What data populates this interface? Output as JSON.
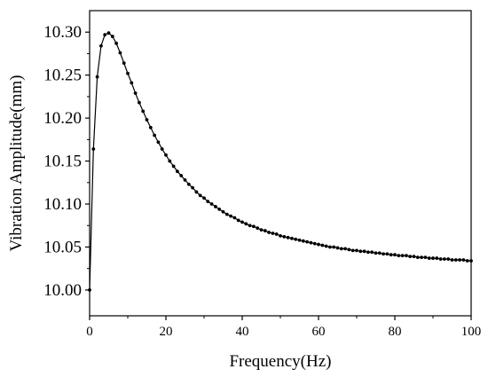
{
  "chart_data": {
    "type": "line",
    "title": "",
    "xlabel": "Frequency(Hz)",
    "ylabel": "Vibration Amplitude(mm)",
    "xlim": [
      0,
      100
    ],
    "ylim": [
      9.97,
      10.325
    ],
    "x_ticks": [
      0,
      20,
      40,
      60,
      80,
      100
    ],
    "x_tick_labels": [
      "0",
      "20",
      "40",
      "60",
      "80",
      "100"
    ],
    "y_ticks": [
      10.0,
      10.05,
      10.1,
      10.15,
      10.2,
      10.25,
      10.3
    ],
    "y_tick_labels": [
      "10.00",
      "10.05",
      "10.10",
      "10.15",
      "10.20",
      "10.25",
      "10.30"
    ],
    "grid": false,
    "legend": "none",
    "line_color": "#000000",
    "marker": "circle",
    "series": [
      {
        "x": [
          0,
          1,
          2,
          3,
          4,
          5,
          6,
          7,
          8,
          9,
          10,
          11,
          12,
          13,
          14,
          15,
          16,
          17,
          18,
          19,
          20,
          21,
          22,
          23,
          24,
          25,
          26,
          27,
          28,
          29,
          30,
          31,
          32,
          33,
          34,
          35,
          36,
          37,
          38,
          39,
          40,
          41,
          42,
          43,
          44,
          45,
          46,
          47,
          48,
          49,
          50,
          51,
          52,
          53,
          54,
          55,
          56,
          57,
          58,
          59,
          60,
          61,
          62,
          63,
          64,
          65,
          66,
          67,
          68,
          69,
          70,
          71,
          72,
          73,
          74,
          75,
          76,
          77,
          78,
          79,
          80,
          81,
          82,
          83,
          84,
          85,
          86,
          87,
          88,
          89,
          90,
          91,
          92,
          93,
          94,
          95,
          96,
          97,
          98,
          99,
          100
        ],
        "values": [
          10.0,
          10.164,
          10.248,
          10.284,
          10.297,
          10.299,
          10.295,
          10.287,
          10.276,
          10.264,
          10.252,
          10.241,
          10.229,
          10.218,
          10.208,
          10.198,
          10.189,
          10.18,
          10.172,
          10.164,
          10.157,
          10.15,
          10.144,
          10.138,
          10.133,
          10.128,
          10.123,
          10.119,
          10.114,
          10.11,
          10.107,
          10.103,
          10.1,
          10.097,
          10.094,
          10.091,
          10.088,
          10.086,
          10.084,
          10.081,
          10.079,
          10.077,
          10.075,
          10.074,
          10.072,
          10.07,
          10.069,
          10.067,
          10.066,
          10.065,
          10.063,
          10.062,
          10.061,
          10.06,
          10.059,
          10.058,
          10.057,
          10.056,
          10.055,
          10.054,
          10.053,
          10.052,
          10.051,
          10.05,
          10.05,
          10.049,
          10.048,
          10.048,
          10.047,
          10.046,
          10.046,
          10.045,
          10.045,
          10.044,
          10.044,
          10.043,
          10.043,
          10.042,
          10.042,
          10.041,
          10.041,
          10.04,
          10.04,
          10.04,
          10.039,
          10.039,
          10.038,
          10.038,
          10.038,
          10.037,
          10.037,
          10.037,
          10.036,
          10.036,
          10.036,
          10.035,
          10.035,
          10.035,
          10.035,
          10.034,
          10.034
        ]
      }
    ]
  }
}
